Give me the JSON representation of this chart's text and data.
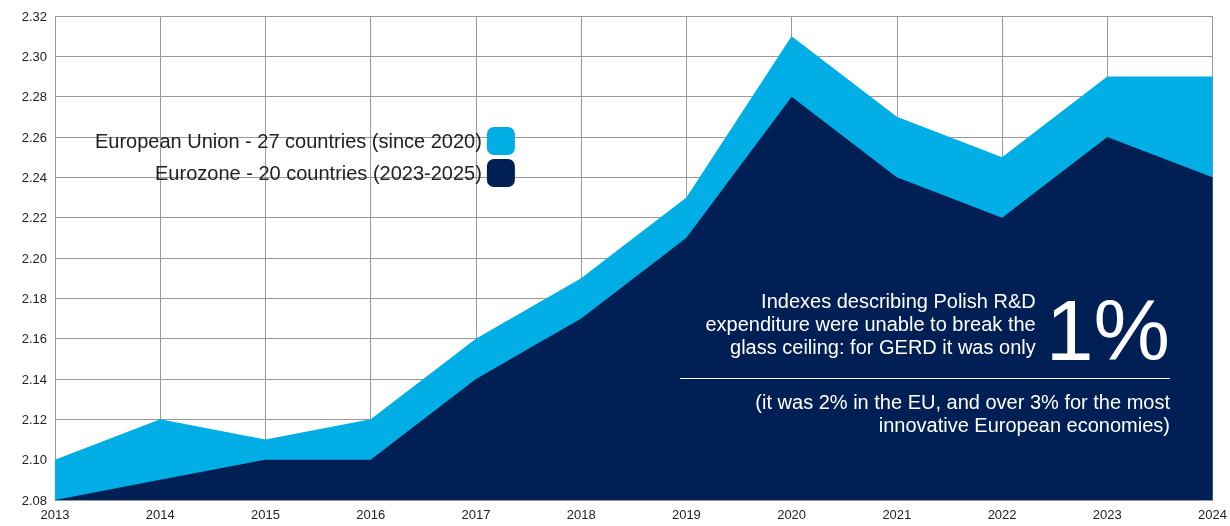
{
  "chart_data": {
    "type": "area",
    "categories": [
      "2013",
      "2014",
      "2015",
      "2016",
      "2017",
      "2018",
      "2019",
      "2020",
      "2021",
      "2022",
      "2023",
      "2024"
    ],
    "series": [
      {
        "name": "European Union - 27 countries (since 2020)",
        "color": "#00aee6",
        "values": [
          2.1,
          2.12,
          2.11,
          2.12,
          2.16,
          2.19,
          2.23,
          2.31,
          2.27,
          2.25,
          2.29,
          2.29
        ]
      },
      {
        "name": "Eurozone - 20 countries (2023-2025)",
        "color": "#002055",
        "values": [
          2.08,
          2.09,
          2.1,
          2.1,
          2.14,
          2.17,
          2.21,
          2.28,
          2.24,
          2.22,
          2.26,
          2.24
        ]
      }
    ],
    "ylim": [
      2.08,
      2.32
    ],
    "yticks": [
      2.08,
      {
        "value": 2.1,
        "label": "2.10"
      },
      2.12,
      2.14,
      2.16,
      2.18,
      {
        "value": 2.2,
        "label": "2.20"
      },
      2.22,
      2.24,
      2.26,
      2.28,
      {
        "value": 2.3,
        "label": "2.30"
      },
      2.32
    ],
    "grid": true,
    "legend": "top left",
    "annotations": [
      "Indexes describing Polish R&D expenditure were unable to break the glass ceiling: for GERD it was only",
      "1%",
      "(it was 2% in the EU, and over 3% for the most innovative European economies)"
    ]
  }
}
